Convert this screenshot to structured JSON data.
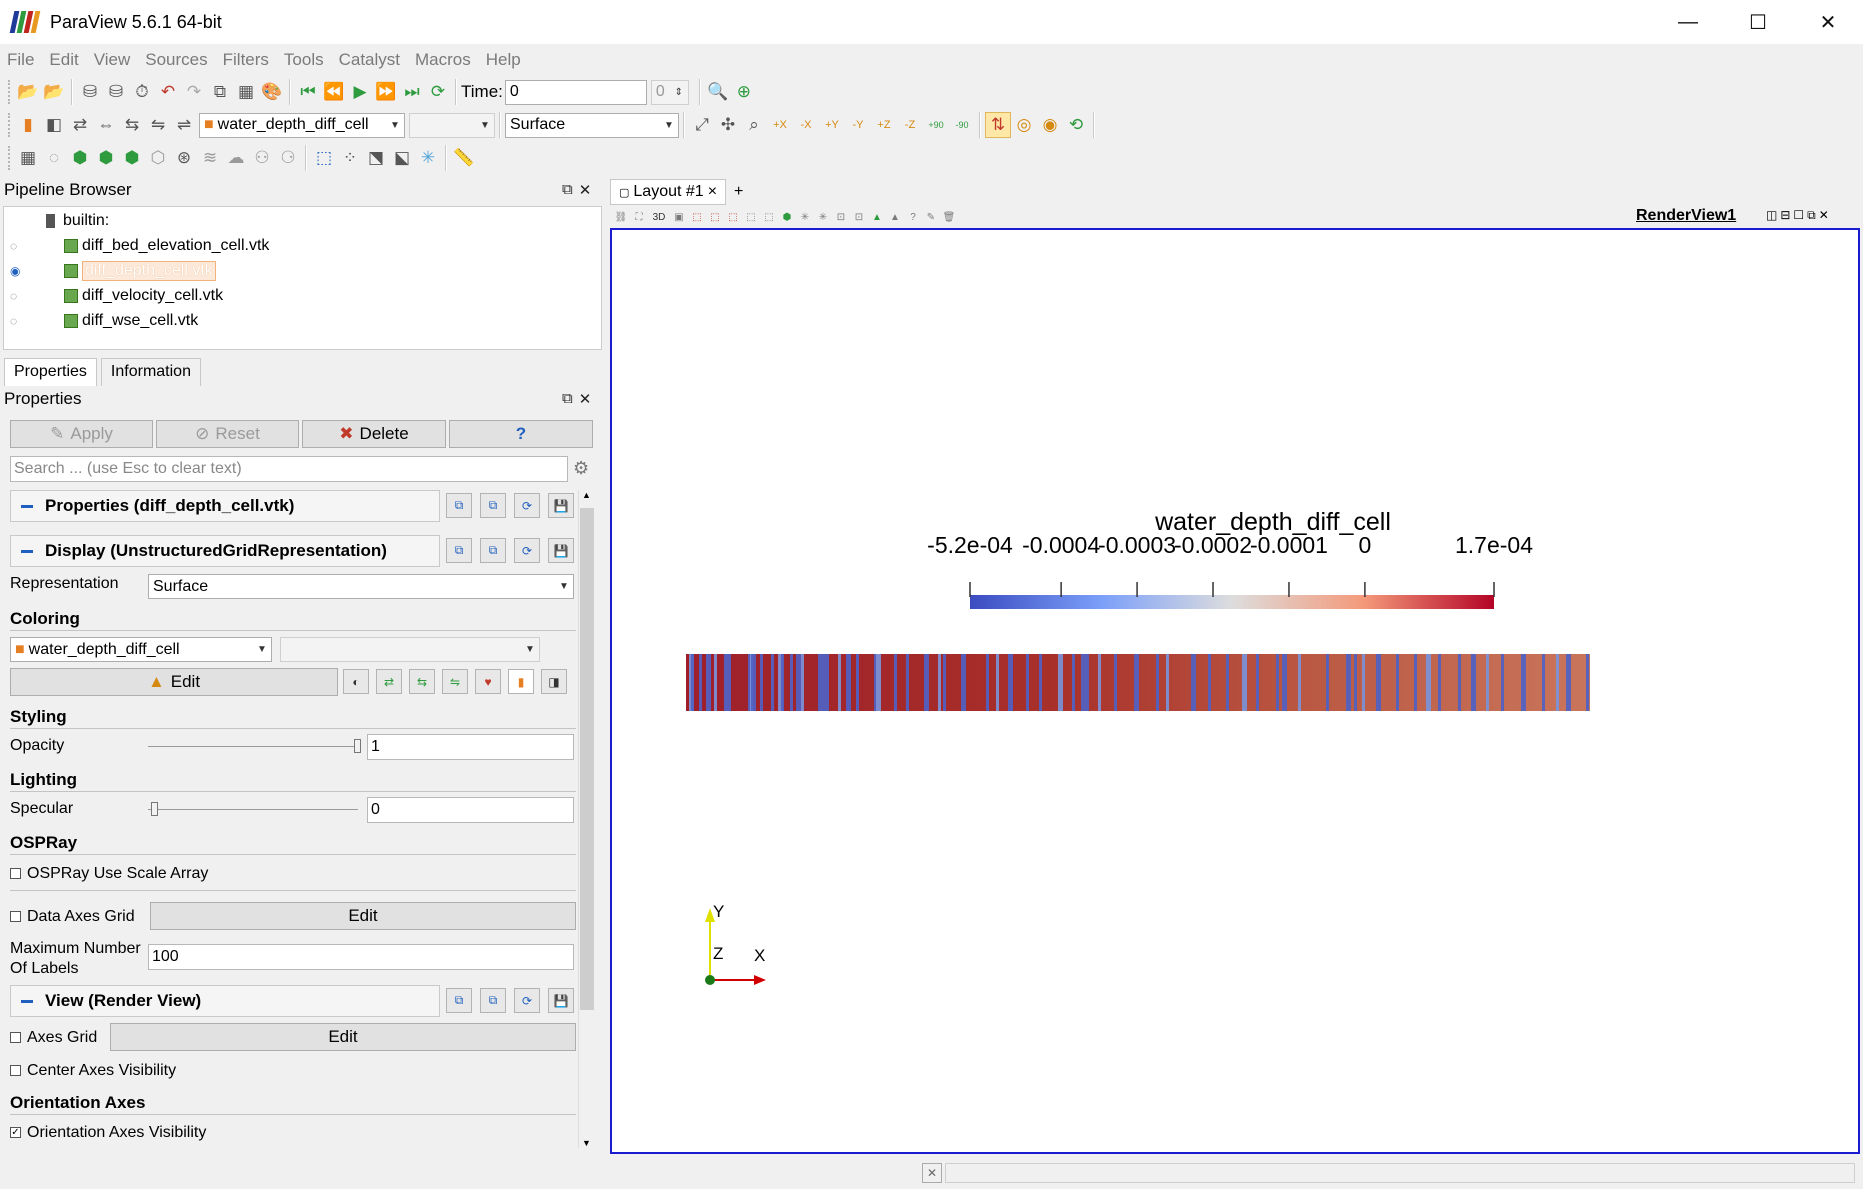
{
  "window": {
    "title": "ParaView 5.6.1 64-bit",
    "logo_colors": [
      "#1f3b99",
      "#2e9b3e",
      "#c0261f",
      "#e79a1f"
    ],
    "minimize": "—",
    "maximize": "☐",
    "close": "✕"
  },
  "menubar": [
    "File",
    "Edit",
    "View",
    "Sources",
    "Filters",
    "Tools",
    "Catalyst",
    "Macros",
    "Help"
  ],
  "toolbar1": {
    "time_label": "Time:",
    "time_value": "0",
    "timestep_value": "0"
  },
  "toolbar2": {
    "array_combo": "water_depth_diff_cell",
    "component_combo": "",
    "representation_combo": "Surface",
    "rotate_plus90": "+90",
    "rotate_minus90": "-90"
  },
  "pipeline": {
    "title": "Pipeline Browser",
    "root": "builtin:",
    "items": [
      {
        "name": "diff_bed_elevation_cell.vtk",
        "visible": false,
        "selected": false
      },
      {
        "name": "diff_depth_cell.vtk",
        "visible": true,
        "selected": true
      },
      {
        "name": "diff_velocity_cell.vtk",
        "visible": false,
        "selected": false
      },
      {
        "name": "diff_wse_cell.vtk",
        "visible": false,
        "selected": false
      }
    ]
  },
  "properties": {
    "tabs": [
      "Properties",
      "Information"
    ],
    "title": "Properties",
    "apply": "Apply",
    "reset": "Reset",
    "delete": "Delete",
    "help": "?",
    "search_placeholder": "Search ... (use Esc to clear text)",
    "section_properties": "Properties (diff_depth_cell.vtk)",
    "section_display": "Display (UnstructuredGridRepresentation)",
    "representation_label": "Representation",
    "representation_value": "Surface",
    "coloring_group": "Coloring",
    "coloring_array": "water_depth_diff_cell",
    "coloring_component": "",
    "edit_label": "Edit",
    "styling_group": "Styling",
    "opacity_label": "Opacity",
    "opacity_value": "1",
    "opacity_level": 1.0,
    "lighting_group": "Lighting",
    "specular_label": "Specular",
    "specular_value": "0",
    "specular_level": 0.0,
    "ospray_group": "OSPRay",
    "ospray_scale_label": "OSPRay Use Scale Array",
    "data_axes_grid_label": "Data Axes Grid",
    "data_axes_edit": "Edit",
    "max_labels_label_1": "Maximum Number",
    "max_labels_label_2": "Of Labels",
    "max_labels_value": "100",
    "section_view": "View (Render View)",
    "axes_grid_label": "Axes Grid",
    "axes_grid_edit": "Edit",
    "center_axes_label": "Center Axes Visibility",
    "orientation_group": "Orientation Axes",
    "orientation_vis_label": "Orientation Axes Visibility",
    "orientation_checked": "✓"
  },
  "layout": {
    "tab_label": "Layout #1",
    "tab_close": "×",
    "add_tab": "+",
    "view_name": "RenderView1",
    "mode_3d": "3D"
  },
  "render": {
    "colorbar_title": "water_depth_diff_cell",
    "colorbar_labels": [
      "-5.2e-04",
      "-0.0004",
      "-0.0003",
      "-0.0002",
      "-0.0001",
      "0",
      "1.7e-04"
    ],
    "colorbar_ticks": [
      -0.00052,
      -0.0004,
      -0.0003,
      -0.0002,
      -0.0001,
      0,
      0.00017
    ],
    "range_min": -0.00052,
    "range_max": 0.00017,
    "axis_y": "Y",
    "axis_z": "Z",
    "axis_x": "X",
    "colors": {
      "low": "#3b4cc0",
      "mid": "#dddddd",
      "high": "#b40426",
      "border": "#1a1ad0"
    }
  }
}
